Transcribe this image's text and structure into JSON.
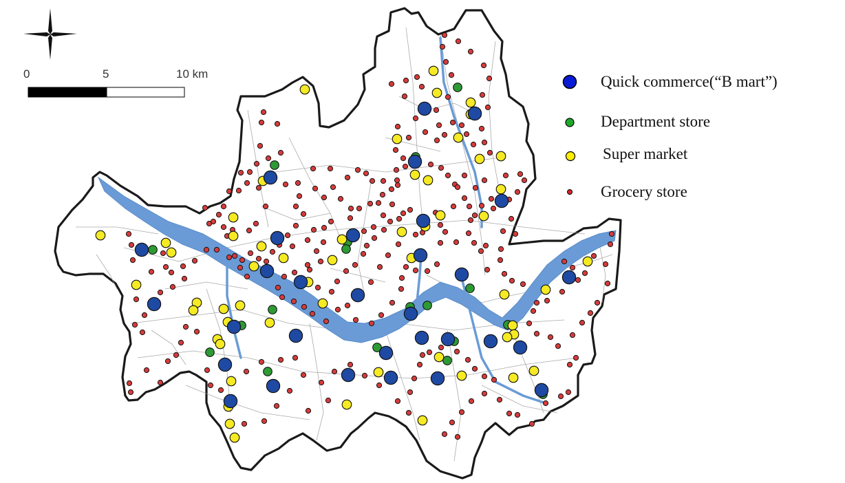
{
  "scale_bar": {
    "ticks": [
      "0",
      "5",
      "10 km"
    ]
  },
  "legend": {
    "items": [
      {
        "label": "Quick commerce(“B mart”)",
        "color": "#0a1bd6",
        "icon": "large-blue-dot"
      },
      {
        "label": "Department store",
        "color": "#1fa82a",
        "icon": "green-dot"
      },
      {
        "label": "Super market",
        "color": "#ffee00",
        "icon": "yellow-dot"
      },
      {
        "label": "Grocery store",
        "color": "#d7262b",
        "icon": "small-red-dot"
      }
    ]
  },
  "colors": {
    "river": "#6a9bd6",
    "boundary": "#1a1a1a",
    "roads": "#9a9a9a",
    "bmart_marker": "#1f4aa3",
    "department_marker": "#2e9a34",
    "supermarket_marker": "#f5ea23",
    "grocery_marker": "#d63b3b"
  },
  "compass_icon": "north-star-icon"
}
